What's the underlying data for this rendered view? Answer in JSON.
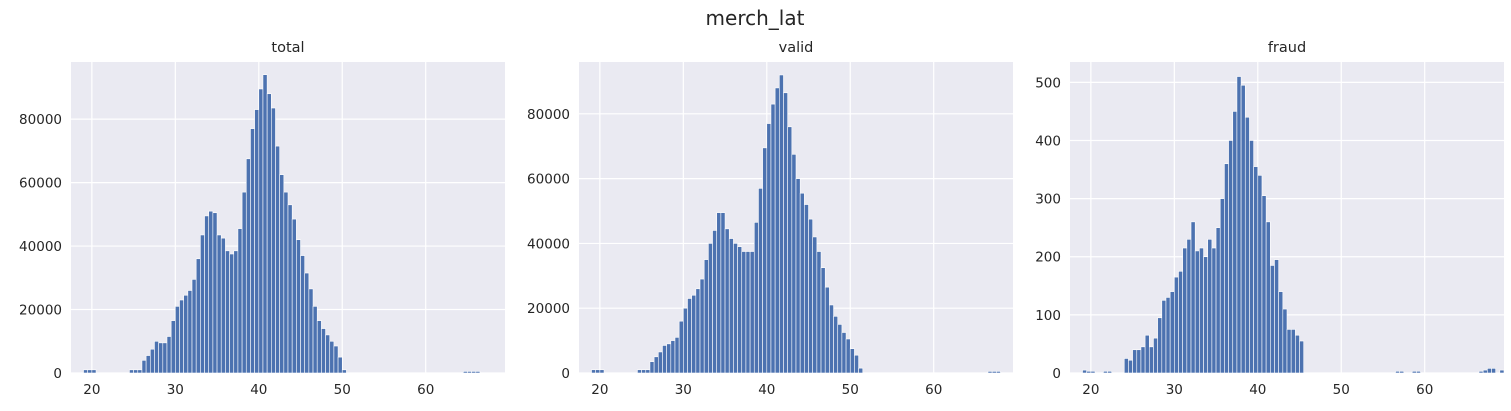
{
  "figure_title": "merch_lat",
  "chart_data": [
    {
      "type": "bar",
      "title": "total",
      "xlabel": "",
      "ylabel": "",
      "xlim": [
        17.5,
        69.5
      ],
      "ylim": [
        0,
        98000
      ],
      "xticks": [
        20,
        30,
        40,
        50,
        60
      ],
      "yticks": [
        0,
        20000,
        40000,
        60000,
        80000
      ],
      "grid": true,
      "bin_start": 19.0,
      "bin_width": 0.5,
      "values": [
        1000,
        1000,
        1000,
        0,
        0,
        0,
        0,
        0,
        0,
        0,
        0,
        1000,
        1000,
        1000,
        4000,
        5500,
        7500,
        10000,
        9500,
        9500,
        11500,
        16500,
        21000,
        23000,
        24500,
        26000,
        29500,
        36000,
        43500,
        49500,
        51000,
        50500,
        43500,
        42500,
        38500,
        37500,
        38500,
        45500,
        57000,
        67500,
        77000,
        83000,
        89500,
        94000,
        88000,
        83500,
        71500,
        62500,
        57000,
        53000,
        48500,
        42000,
        37000,
        31500,
        26500,
        21000,
        16500,
        14000,
        12000,
        10000,
        8500,
        5000,
        1000,
        0,
        0,
        0,
        0,
        0,
        0,
        0,
        0,
        0,
        0,
        0,
        0,
        0,
        0,
        0,
        0,
        0,
        0,
        0,
        0,
        0,
        0,
        0,
        0,
        0,
        0,
        0,
        0,
        500,
        500,
        500,
        500,
        0
      ]
    },
    {
      "type": "bar",
      "title": "valid",
      "xlabel": "",
      "ylabel": "",
      "xlim": [
        17.5,
        69.5
      ],
      "ylim": [
        0,
        96000
      ],
      "xticks": [
        20,
        30,
        40,
        50,
        60
      ],
      "yticks": [
        0,
        20000,
        40000,
        60000,
        80000
      ],
      "grid": true,
      "bin_start": 19.0,
      "bin_width": 0.5,
      "values": [
        1000,
        1000,
        1000,
        0,
        0,
        0,
        0,
        0,
        0,
        0,
        0,
        1000,
        1000,
        1000,
        3500,
        5000,
        6500,
        8500,
        9000,
        10000,
        11000,
        16000,
        20000,
        23000,
        24000,
        26000,
        29000,
        35000,
        40000,
        44000,
        49500,
        49500,
        44500,
        41500,
        40000,
        39000,
        37500,
        37500,
        37500,
        46500,
        57000,
        69500,
        77000,
        83000,
        88000,
        92000,
        86500,
        76000,
        67500,
        60000,
        55500,
        52000,
        47500,
        42000,
        37500,
        32500,
        26500,
        21000,
        17500,
        15000,
        12500,
        10500,
        7500,
        5500,
        1500,
        0,
        0,
        0,
        0,
        0,
        0,
        0,
        0,
        0,
        0,
        0,
        0,
        0,
        0,
        0,
        0,
        0,
        0,
        0,
        0,
        0,
        0,
        0,
        0,
        0,
        0,
        0,
        0,
        0,
        0,
        500,
        500,
        500
      ]
    },
    {
      "type": "bar",
      "title": "fraud",
      "xlabel": "",
      "ylabel": "",
      "xlim": [
        17.5,
        69.5
      ],
      "ylim": [
        0,
        535
      ],
      "xticks": [
        20,
        30,
        40,
        50,
        60
      ],
      "yticks": [
        0,
        100,
        200,
        300,
        400,
        500
      ],
      "grid": true,
      "bin_start": 19.0,
      "bin_width": 0.5,
      "values": [
        5,
        3,
        3,
        0,
        0,
        3,
        3,
        0,
        0,
        0,
        25,
        22,
        40,
        40,
        45,
        65,
        45,
        60,
        95,
        125,
        130,
        140,
        165,
        175,
        215,
        230,
        260,
        210,
        215,
        200,
        230,
        215,
        250,
        300,
        360,
        400,
        450,
        510,
        495,
        440,
        400,
        355,
        340,
        305,
        260,
        185,
        195,
        140,
        110,
        75,
        75,
        65,
        55,
        0,
        0,
        0,
        0,
        0,
        0,
        0,
        0,
        0,
        0,
        0,
        0,
        0,
        0,
        0,
        0,
        0,
        0,
        0,
        0,
        0,
        0,
        3,
        3,
        0,
        0,
        3,
        3,
        0,
        0,
        0,
        0,
        0,
        0,
        0,
        0,
        0,
        0,
        0,
        0,
        0,
        0,
        3,
        5,
        8,
        8,
        0,
        5
      ]
    }
  ]
}
